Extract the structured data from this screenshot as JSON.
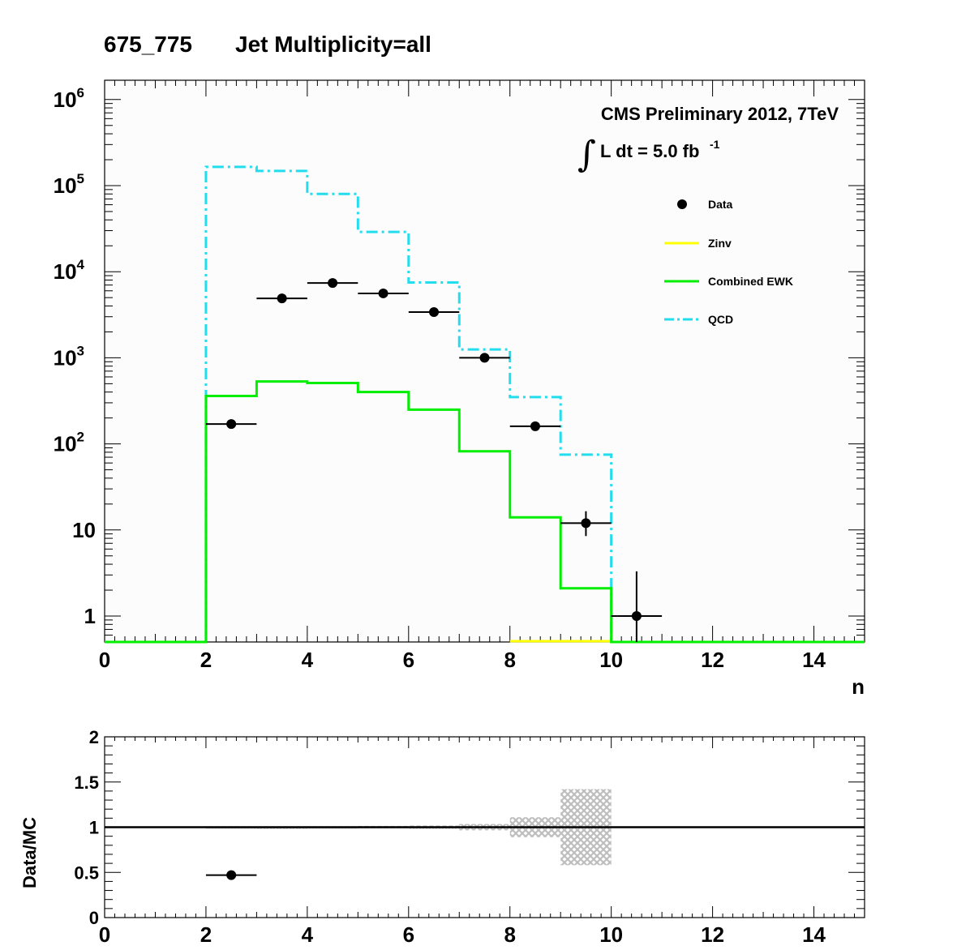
{
  "header": {
    "bin_label": "675_775",
    "selection_label": "Jet Multiplicity=all"
  },
  "annotation": {
    "experiment": "CMS Preliminary 2012, 7TeV",
    "integral_symbol": "∫",
    "lumi_text": "L dt = 5.0 fb",
    "lumi_exponent": "-1"
  },
  "colors": {
    "data": "#000000",
    "zinv": "#ffff00",
    "ewk": "#00ee00",
    "qcd": "#22ddee",
    "band": "#bbbbbb"
  },
  "chart_data": [
    {
      "type": "line",
      "xlabel": "n",
      "ylabel": "",
      "xlim": [
        0,
        15
      ],
      "ylim": [
        0.5,
        1500000
      ],
      "yscale": "log",
      "x_ticks": [
        "0",
        "2",
        "4",
        "6",
        "8",
        "10",
        "12",
        "14"
      ],
      "y_ticks": [
        {
          "base": "1",
          "exp": ""
        },
        {
          "base": "10",
          "exp": ""
        },
        {
          "base": "10",
          "exp": "2"
        },
        {
          "base": "10",
          "exp": "3"
        },
        {
          "base": "10",
          "exp": "4"
        },
        {
          "base": "10",
          "exp": "5"
        },
        {
          "base": "10",
          "exp": "6"
        }
      ],
      "legend": [
        "Data",
        "Zinv",
        "Combined EWK",
        "QCD"
      ],
      "bin_edges": [
        0,
        1,
        2,
        3,
        4,
        5,
        6,
        7,
        8,
        9,
        10,
        11,
        12,
        13,
        14,
        15
      ],
      "series": [
        {
          "name": "Data",
          "style": "points",
          "x": [
            2.5,
            3.5,
            4.5,
            5.5,
            6.5,
            7.5,
            8.5,
            9.5,
            10.5
          ],
          "y": [
            170,
            4900,
            7400,
            5600,
            3400,
            1000,
            160,
            12,
            1
          ],
          "yerr_low": [
            13,
            70,
            86,
            75,
            58,
            32,
            13,
            3.5,
            0.83
          ],
          "yerr_high": [
            14,
            70,
            86,
            75,
            58,
            32,
            14,
            4.5,
            2.3
          ]
        },
        {
          "name": "Zinv",
          "style": "step",
          "y": [
            0,
            0,
            0,
            0,
            0,
            0,
            0,
            0,
            0,
            0,
            0,
            0,
            0,
            0,
            0
          ]
        },
        {
          "name": "Combined EWK",
          "style": "step",
          "y": [
            0,
            0,
            360,
            530,
            510,
            400,
            250,
            82,
            14,
            2.1,
            0,
            0,
            0,
            0,
            0
          ]
        },
        {
          "name": "QCD",
          "style": "step-dashdot",
          "y": [
            0,
            0,
            165000,
            148000,
            80000,
            29000,
            7500,
            1250,
            350,
            75,
            0,
            0,
            0,
            0,
            0
          ]
        }
      ]
    },
    {
      "type": "scatter",
      "xlabel": "",
      "ylabel": "Data/MC",
      "xlim": [
        0,
        15
      ],
      "ylim": [
        0,
        2
      ],
      "x_ticks": [
        "0",
        "2",
        "4",
        "6",
        "8",
        "10",
        "12",
        "14"
      ],
      "y_ticks": [
        "0",
        "0.5",
        "1",
        "1.5",
        "2"
      ],
      "reference_line": 1,
      "series": [
        {
          "name": "Data/MC",
          "x": [
            2.5
          ],
          "y": [
            0.47
          ],
          "yerr": [
            0.04
          ]
        }
      ],
      "uncertainty_band": {
        "bin_edges": [
          2,
          3,
          4,
          5,
          6,
          7,
          8,
          9,
          10
        ],
        "half_width": [
          0.01,
          0.008,
          0.01,
          0.014,
          0.018,
          0.035,
          0.11,
          0.42
        ]
      }
    }
  ]
}
